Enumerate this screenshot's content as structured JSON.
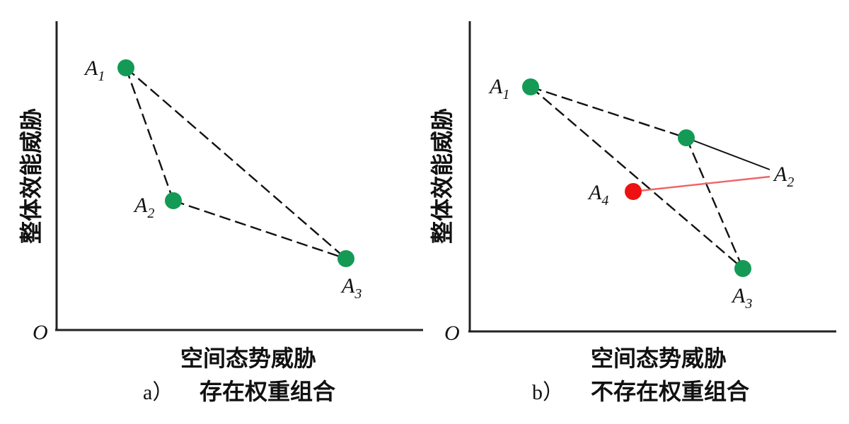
{
  "origin_label": "O",
  "y_axis_label": "整体效能威胁",
  "x_axis_label": "空间态势威胁",
  "colors": {
    "node_green": "#149a55",
    "node_red": "#ee1111",
    "red_line": "#f06464",
    "axis": "#222222",
    "edge": "#111111"
  },
  "panel_a": {
    "caption_letter": "a）",
    "caption_text": "存在权重组合",
    "points": {
      "A1": {
        "base": "A",
        "sub": "1"
      },
      "A2": {
        "base": "A",
        "sub": "2"
      },
      "A3": {
        "base": "A",
        "sub": "3"
      }
    }
  },
  "panel_b": {
    "caption_letter": "b）",
    "caption_text": "不存在权重组合",
    "points": {
      "A1": {
        "base": "A",
        "sub": "1"
      },
      "A2": {
        "base": "A",
        "sub": "2"
      },
      "A3": {
        "base": "A",
        "sub": "3"
      },
      "A4": {
        "base": "A",
        "sub": "4"
      }
    }
  }
}
